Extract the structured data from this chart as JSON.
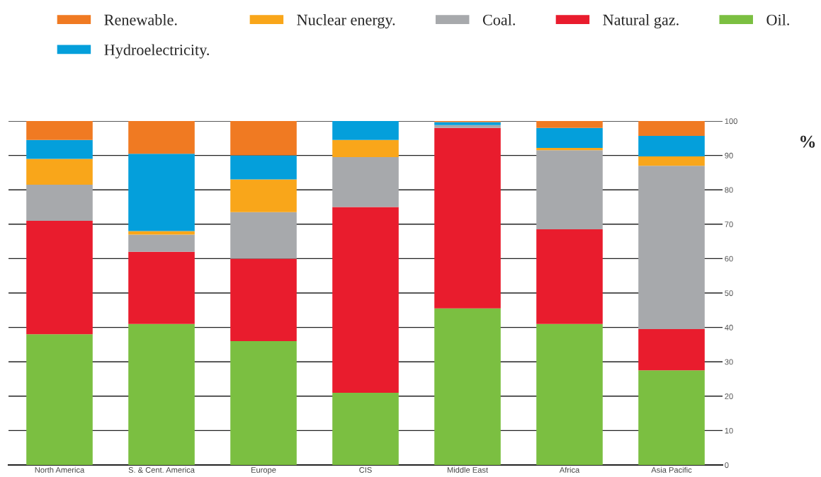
{
  "chart_data": {
    "type": "bar",
    "stacked": true,
    "ylabel": "%",
    "categories": [
      "North America",
      "S. & Cent. America",
      "Europe",
      "CIS",
      "Middle East",
      "Africa",
      "Asia Pacific"
    ],
    "series": [
      {
        "name": "Oil.",
        "color": "#7bbf41",
        "values": [
          38,
          41,
          36,
          21,
          45.5,
          41,
          27.5
        ]
      },
      {
        "name": "Natural gaz.",
        "color": "#e91c2d",
        "values": [
          33,
          21,
          24,
          54,
          52.5,
          27.5,
          12
        ]
      },
      {
        "name": "Coal.",
        "color": "#a7a9ac",
        "values": [
          10.5,
          5,
          13.5,
          14.5,
          0.8,
          23,
          47.5
        ]
      },
      {
        "name": "Nuclear energy.",
        "color": "#f9a61a",
        "values": [
          7.5,
          1,
          9.5,
          5,
          0,
          0.7,
          2.7
        ]
      },
      {
        "name": "Hydroelectricity.",
        "color": "#049fdb",
        "values": [
          5.5,
          22.5,
          7,
          5.5,
          0.9,
          5.8,
          6
        ]
      },
      {
        "name": "Renewable.",
        "color": "#f07a22",
        "values": [
          5.5,
          9.5,
          10,
          0,
          0.3,
          2,
          4.3
        ]
      }
    ],
    "ylim": [
      0,
      100
    ],
    "yticks": [
      0,
      10,
      20,
      30,
      40,
      50,
      60,
      70,
      80,
      90,
      100
    ],
    "grid": "y",
    "legend": "top"
  }
}
